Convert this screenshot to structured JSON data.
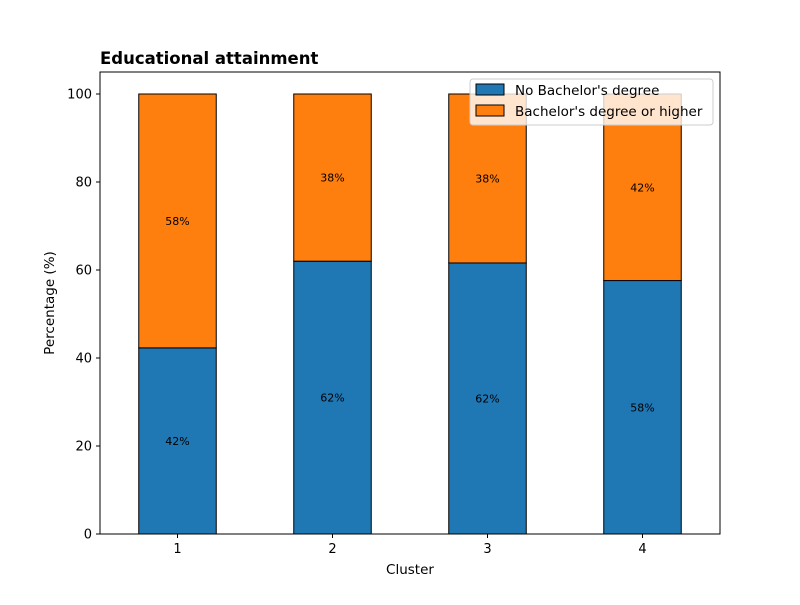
{
  "chart_data": {
    "type": "bar",
    "stacked": true,
    "title": "Educational attainment",
    "xlabel": "Cluster",
    "ylabel": "Percentage (%)",
    "categories": [
      "1",
      "2",
      "3",
      "4"
    ],
    "ylim": [
      0,
      105
    ],
    "yticks": [
      0,
      20,
      40,
      60,
      80,
      100
    ],
    "grid": false,
    "legend_position": "top-right",
    "series": [
      {
        "name": "No Bachelor's degree",
        "color": "#1f77b4",
        "values": [
          42.3,
          62.0,
          61.6,
          57.6
        ],
        "labels": [
          "42%",
          "62%",
          "62%",
          "58%"
        ]
      },
      {
        "name": "Bachelor's degree or higher",
        "color": "#ff7f0e",
        "values": [
          57.7,
          38.0,
          38.4,
          42.4
        ],
        "labels": [
          "58%",
          "38%",
          "38%",
          "42%"
        ]
      }
    ]
  }
}
